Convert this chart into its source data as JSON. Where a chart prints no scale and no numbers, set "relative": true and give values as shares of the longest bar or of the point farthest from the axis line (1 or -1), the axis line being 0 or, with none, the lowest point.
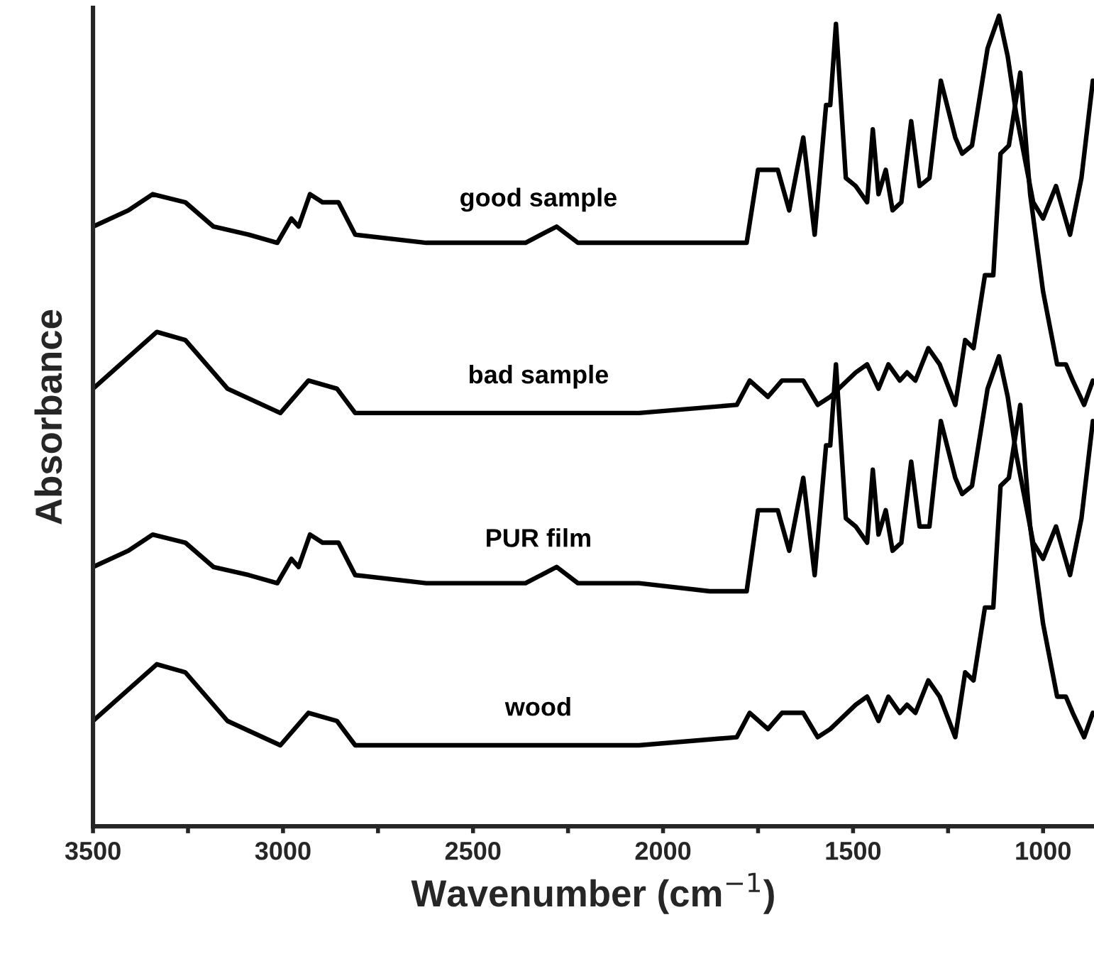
{
  "chart_data": {
    "type": "line",
    "relative": true,
    "xlabel": "Wavenumber (cm$^{−1}$)",
    "ylabel": "Absorbance",
    "xlim": [
      3500,
      866
    ],
    "xticks": [
      3500,
      {
        "value": 3250,
        "label": null
      },
      3000,
      {
        "value": 2750,
        "label": null
      },
      2500,
      {
        "value": 2250,
        "label": null
      },
      2000,
      {
        "value": 1750,
        "label": null
      },
      1500,
      {
        "value": 1250,
        "label": null
      },
      1000
    ],
    "grid": false,
    "legend": false,
    "marker": "none",
    "line_style": "solid",
    "series": [
      {
        "name": "good sample",
        "color": "#000000",
        "x": [
          3500,
          3407,
          3343,
          3257,
          3183,
          3090,
          3015,
          2978,
          2959,
          2929,
          2896,
          2854,
          2810,
          2623,
          2362,
          2280,
          2224,
          2063,
          1877,
          1780,
          1750,
          1720,
          1698,
          1668,
          1631,
          1601,
          1571,
          1560,
          1545,
          1519,
          1493,
          1463,
          1448,
          1433,
          1414,
          1396,
          1373,
          1347,
          1325,
          1299,
          1269,
          1231,
          1213,
          1187,
          1146,
          1116,
          1093,
          1071,
          1026,
          1000,
          966,
          929,
          899,
          869
        ],
        "values": [
          0.74,
          0.76,
          0.78,
          0.77,
          0.74,
          0.73,
          0.72,
          0.75,
          0.74,
          0.78,
          0.77,
          0.77,
          0.73,
          0.72,
          0.72,
          0.74,
          0.72,
          0.72,
          0.72,
          0.72,
          0.81,
          0.81,
          0.81,
          0.76,
          0.85,
          0.73,
          0.89,
          0.89,
          0.99,
          0.8,
          0.79,
          0.77,
          0.86,
          0.78,
          0.81,
          0.76,
          0.77,
          0.87,
          0.79,
          0.8,
          0.92,
          0.85,
          0.83,
          0.84,
          0.96,
          1.0,
          0.95,
          0.88,
          0.77,
          0.75,
          0.79,
          0.73,
          0.8,
          0.92
        ]
      },
      {
        "name": "bad sample",
        "color": "#000000",
        "x": [
          3500,
          3332,
          3257,
          3146,
          3007,
          2933,
          2858,
          2810,
          2437,
          2063,
          1806,
          1772,
          1724,
          1687,
          1631,
          1593,
          1560,
          1493,
          1463,
          1433,
          1407,
          1377,
          1358,
          1336,
          1302,
          1272,
          1231,
          1205,
          1183,
          1153,
          1131,
          1112,
          1090,
          1060,
          1034,
          1000,
          963,
          940,
          922,
          892,
          869
        ],
        "values": [
          0.54,
          0.61,
          0.6,
          0.54,
          0.51,
          0.55,
          0.54,
          0.51,
          0.51,
          0.51,
          0.52,
          0.55,
          0.53,
          0.55,
          0.55,
          0.52,
          0.53,
          0.56,
          0.57,
          0.54,
          0.57,
          0.55,
          0.56,
          0.55,
          0.59,
          0.57,
          0.52,
          0.6,
          0.59,
          0.68,
          0.68,
          0.83,
          0.84,
          0.93,
          0.78,
          0.66,
          0.57,
          0.57,
          0.55,
          0.52,
          0.55
        ]
      },
      {
        "name": "PUR film",
        "color": "#000000",
        "x": [
          3500,
          3407,
          3343,
          3257,
          3183,
          3090,
          3015,
          2978,
          2959,
          2929,
          2896,
          2854,
          2810,
          2623,
          2362,
          2280,
          2224,
          2063,
          1877,
          1780,
          1750,
          1720,
          1698,
          1668,
          1631,
          1601,
          1571,
          1560,
          1545,
          1519,
          1493,
          1463,
          1448,
          1433,
          1414,
          1396,
          1373,
          1347,
          1325,
          1299,
          1269,
          1231,
          1213,
          1187,
          1146,
          1116,
          1093,
          1071,
          1026,
          1000,
          966,
          929,
          899,
          869
        ],
        "values": [
          0.32,
          0.34,
          0.36,
          0.35,
          0.32,
          0.31,
          0.3,
          0.33,
          0.32,
          0.36,
          0.35,
          0.35,
          0.31,
          0.3,
          0.3,
          0.32,
          0.3,
          0.3,
          0.29,
          0.29,
          0.39,
          0.39,
          0.39,
          0.34,
          0.43,
          0.31,
          0.47,
          0.47,
          0.57,
          0.38,
          0.37,
          0.35,
          0.44,
          0.36,
          0.39,
          0.34,
          0.35,
          0.45,
          0.37,
          0.37,
          0.5,
          0.43,
          0.41,
          0.42,
          0.54,
          0.58,
          0.53,
          0.46,
          0.35,
          0.33,
          0.37,
          0.31,
          0.38,
          0.5
        ]
      },
      {
        "name": "wood",
        "color": "#000000",
        "x": [
          3500,
          3332,
          3257,
          3146,
          3007,
          2933,
          2858,
          2810,
          2437,
          2063,
          1806,
          1772,
          1724,
          1687,
          1631,
          1593,
          1560,
          1493,
          1463,
          1433,
          1407,
          1377,
          1358,
          1336,
          1302,
          1272,
          1231,
          1205,
          1183,
          1153,
          1131,
          1112,
          1090,
          1060,
          1034,
          1000,
          963,
          940,
          922,
          892,
          869
        ],
        "values": [
          0.13,
          0.2,
          0.19,
          0.13,
          0.1,
          0.14,
          0.13,
          0.1,
          0.1,
          0.1,
          0.11,
          0.14,
          0.12,
          0.14,
          0.14,
          0.11,
          0.12,
          0.15,
          0.16,
          0.13,
          0.16,
          0.14,
          0.15,
          0.14,
          0.18,
          0.16,
          0.11,
          0.19,
          0.18,
          0.27,
          0.27,
          0.42,
          0.43,
          0.52,
          0.37,
          0.25,
          0.16,
          0.16,
          0.14,
          0.11,
          0.14
        ]
      }
    ]
  }
}
